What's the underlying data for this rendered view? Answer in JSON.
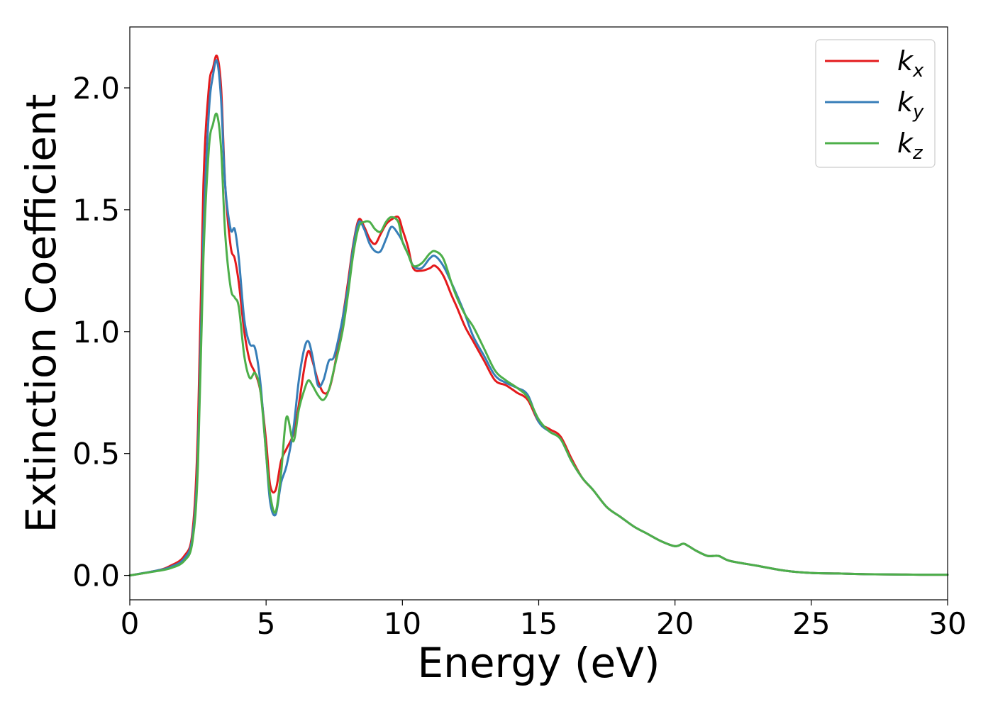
{
  "chart_data": {
    "type": "line",
    "title": "",
    "xlabel": "Energy (eV)",
    "ylabel": "Extinction Coefficient",
    "xlim": [
      0,
      30
    ],
    "ylim": [
      -0.1,
      2.25
    ],
    "xticks": [
      0,
      5,
      10,
      15,
      20,
      25,
      30
    ],
    "xtick_labels": [
      "0",
      "5",
      "10",
      "15",
      "20",
      "25",
      "30"
    ],
    "yticks": [
      0.0,
      0.5,
      1.0,
      1.5,
      2.0
    ],
    "ytick_labels": [
      "0.0",
      "0.5",
      "1.0",
      "1.5",
      "2.0"
    ],
    "grid": false,
    "legend_position": "top-right",
    "series": [
      {
        "name": "k_x",
        "label_base": "k",
        "label_sub": "x",
        "color": "#e41a1c",
        "x": [
          0,
          1,
          1.5,
          2,
          2.3,
          2.5,
          2.7,
          2.9,
          3.05,
          3.2,
          3.35,
          3.5,
          3.7,
          3.85,
          4.0,
          4.2,
          4.4,
          4.6,
          4.8,
          5.0,
          5.15,
          5.35,
          5.55,
          5.75,
          6.0,
          6.2,
          6.4,
          6.55,
          6.7,
          6.9,
          7.1,
          7.3,
          7.5,
          7.8,
          8.0,
          8.2,
          8.4,
          8.6,
          8.8,
          9.0,
          9.2,
          9.4,
          9.6,
          9.85,
          10.0,
          10.2,
          10.4,
          10.7,
          11.0,
          11.2,
          11.5,
          11.8,
          12.0,
          12.3,
          12.6,
          13.0,
          13.4,
          13.8,
          14.2,
          14.6,
          15.0,
          15.4,
          15.8,
          16.2,
          16.6,
          17.0,
          17.5,
          18.0,
          18.5,
          19.0,
          19.5,
          20.0,
          20.3,
          20.5,
          20.8,
          21.2,
          21.6,
          22.0,
          23.0,
          24.0,
          25.0,
          26.0,
          27.0,
          28.0,
          29.0,
          30.0
        ],
        "values": [
          0.0,
          0.02,
          0.04,
          0.08,
          0.18,
          0.6,
          1.6,
          2.0,
          2.08,
          2.13,
          2.0,
          1.6,
          1.35,
          1.3,
          1.2,
          1.0,
          0.88,
          0.83,
          0.75,
          0.55,
          0.37,
          0.35,
          0.47,
          0.52,
          0.58,
          0.7,
          0.85,
          0.92,
          0.88,
          0.8,
          0.75,
          0.76,
          0.85,
          1.05,
          1.2,
          1.36,
          1.46,
          1.43,
          1.38,
          1.36,
          1.4,
          1.44,
          1.46,
          1.47,
          1.42,
          1.35,
          1.26,
          1.25,
          1.26,
          1.27,
          1.23,
          1.15,
          1.1,
          1.02,
          0.96,
          0.88,
          0.8,
          0.78,
          0.75,
          0.72,
          0.63,
          0.6,
          0.57,
          0.48,
          0.4,
          0.35,
          0.28,
          0.24,
          0.2,
          0.17,
          0.14,
          0.12,
          0.13,
          0.12,
          0.1,
          0.08,
          0.08,
          0.06,
          0.04,
          0.02,
          0.01,
          0.008,
          0.005,
          0.004,
          0.003,
          0.003
        ]
      },
      {
        "name": "k_y",
        "label_base": "k",
        "label_sub": "y",
        "color": "#377eb8",
        "x": [
          0,
          1,
          1.5,
          2,
          2.3,
          2.5,
          2.7,
          2.9,
          3.05,
          3.2,
          3.35,
          3.5,
          3.7,
          3.85,
          4.0,
          4.2,
          4.4,
          4.6,
          4.8,
          5.0,
          5.15,
          5.35,
          5.55,
          5.75,
          6.0,
          6.2,
          6.4,
          6.55,
          6.7,
          6.9,
          7.1,
          7.3,
          7.5,
          7.8,
          8.0,
          8.2,
          8.4,
          8.6,
          8.8,
          9.0,
          9.2,
          9.4,
          9.6,
          9.85,
          10.0,
          10.2,
          10.4,
          10.7,
          11.0,
          11.2,
          11.5,
          11.8,
          12.0,
          12.3,
          12.6,
          13.0,
          13.4,
          13.8,
          14.2,
          14.6,
          15.0,
          15.4,
          15.8,
          16.2,
          16.6,
          17.0,
          17.5,
          18.0,
          18.5,
          19.0,
          19.5,
          20.0,
          20.3,
          20.5,
          20.8,
          21.2,
          21.6,
          22.0,
          23.0,
          24.0,
          25.0,
          26.0,
          27.0,
          28.0,
          29.0,
          30.0
        ],
        "values": [
          0.0,
          0.02,
          0.035,
          0.07,
          0.16,
          0.5,
          1.4,
          1.9,
          2.05,
          2.11,
          1.95,
          1.6,
          1.42,
          1.42,
          1.3,
          1.05,
          0.95,
          0.93,
          0.78,
          0.5,
          0.3,
          0.25,
          0.38,
          0.45,
          0.6,
          0.8,
          0.93,
          0.96,
          0.9,
          0.78,
          0.8,
          0.88,
          0.9,
          1.05,
          1.18,
          1.35,
          1.45,
          1.42,
          1.36,
          1.33,
          1.33,
          1.38,
          1.43,
          1.4,
          1.37,
          1.32,
          1.27,
          1.26,
          1.3,
          1.31,
          1.27,
          1.2,
          1.15,
          1.07,
          0.98,
          0.9,
          0.82,
          0.79,
          0.77,
          0.74,
          0.63,
          0.59,
          0.56,
          0.47,
          0.4,
          0.35,
          0.28,
          0.24,
          0.2,
          0.17,
          0.14,
          0.12,
          0.13,
          0.12,
          0.1,
          0.08,
          0.08,
          0.06,
          0.04,
          0.02,
          0.01,
          0.008,
          0.005,
          0.004,
          0.003,
          0.003
        ]
      },
      {
        "name": "k_z",
        "label_base": "k",
        "label_sub": "z",
        "color": "#4daf4a",
        "x": [
          0,
          1,
          1.5,
          2,
          2.3,
          2.5,
          2.7,
          2.9,
          3.05,
          3.2,
          3.35,
          3.5,
          3.7,
          3.85,
          4.0,
          4.2,
          4.4,
          4.6,
          4.8,
          5.0,
          5.15,
          5.35,
          5.55,
          5.75,
          6.0,
          6.2,
          6.4,
          6.55,
          6.7,
          6.9,
          7.1,
          7.3,
          7.5,
          7.8,
          8.0,
          8.2,
          8.4,
          8.6,
          8.8,
          9.0,
          9.2,
          9.4,
          9.6,
          9.85,
          10.0,
          10.2,
          10.4,
          10.7,
          11.0,
          11.2,
          11.5,
          11.8,
          12.0,
          12.3,
          12.6,
          13.0,
          13.4,
          13.8,
          14.2,
          14.6,
          15.0,
          15.4,
          15.8,
          16.2,
          16.6,
          17.0,
          17.5,
          18.0,
          18.5,
          19.0,
          19.5,
          20.0,
          20.3,
          20.5,
          20.8,
          21.2,
          21.6,
          22.0,
          23.0,
          24.0,
          25.0,
          26.0,
          27.0,
          28.0,
          29.0,
          30.0
        ],
        "values": [
          0.0,
          0.018,
          0.03,
          0.06,
          0.14,
          0.45,
          1.3,
          1.75,
          1.85,
          1.89,
          1.75,
          1.4,
          1.18,
          1.14,
          1.1,
          0.9,
          0.81,
          0.83,
          0.75,
          0.5,
          0.33,
          0.26,
          0.42,
          0.65,
          0.55,
          0.68,
          0.76,
          0.8,
          0.78,
          0.74,
          0.72,
          0.76,
          0.85,
          1.0,
          1.15,
          1.32,
          1.43,
          1.45,
          1.45,
          1.42,
          1.41,
          1.45,
          1.47,
          1.45,
          1.37,
          1.32,
          1.27,
          1.28,
          1.32,
          1.33,
          1.3,
          1.2,
          1.14,
          1.07,
          1.02,
          0.93,
          0.84,
          0.8,
          0.77,
          0.73,
          0.64,
          0.59,
          0.56,
          0.47,
          0.4,
          0.35,
          0.28,
          0.24,
          0.2,
          0.17,
          0.14,
          0.12,
          0.13,
          0.12,
          0.1,
          0.08,
          0.08,
          0.06,
          0.04,
          0.02,
          0.01,
          0.008,
          0.005,
          0.004,
          0.003,
          0.003
        ]
      }
    ]
  }
}
